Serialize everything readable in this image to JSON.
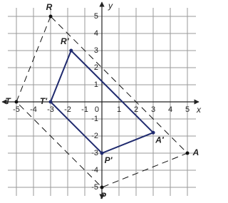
{
  "chart_data": {
    "type": "polygon",
    "xlabel": "x",
    "ylabel": "y",
    "xlim": [
      -5.5,
      5.5
    ],
    "ylim": [
      -5.5,
      5.5
    ],
    "xticks": [
      -5,
      -4,
      -3,
      -2,
      -1,
      0,
      1,
      2,
      3,
      4,
      5
    ],
    "yticks": [
      -5,
      -4,
      -3,
      -2,
      -1,
      1,
      2,
      3,
      4,
      5
    ],
    "grid": true,
    "shapes": [
      {
        "labels": [
          "R",
          "T",
          "P",
          "A"
        ],
        "x": [
          -3,
          -5,
          0,
          5
        ],
        "y": [
          5,
          0,
          -5,
          -3
        ],
        "color": "#111111",
        "dashed": true
      },
      {
        "labels": [
          "R'",
          "T'",
          "P'",
          "A'"
        ],
        "x": [
          -1.8,
          -3,
          0,
          3
        ],
        "y": [
          3,
          0,
          -3,
          -1.8
        ],
        "color": "#1f2a6e",
        "dashed": false
      }
    ]
  }
}
